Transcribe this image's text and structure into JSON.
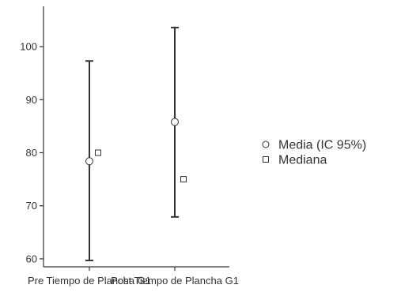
{
  "chart_data": {
    "type": "errorbar",
    "categories": [
      "Pre Tiempo de Plancha G1",
      "Post Tiempo de Plancha G1"
    ],
    "series": [
      {
        "name": "Media (IC 95%)",
        "marker": "circle",
        "values": [
          78.4,
          85.8
        ]
      },
      {
        "name": "Mediana",
        "marker": "square",
        "values": [
          80,
          75
        ]
      }
    ],
    "ci_lower": [
      59.7,
      67.9
    ],
    "ci_upper": [
      97.3,
      103.6
    ],
    "title": "",
    "xlabel": "",
    "ylabel": "",
    "ylim": [
      58.5,
      107.6
    ],
    "yticks": [
      "60",
      "70",
      "80",
      "90",
      "100"
    ],
    "grid": false,
    "legend_position": "right",
    "colors": {
      "axis": "#333333",
      "errorbar": "#333333",
      "marker_fill": "#ffffff",
      "text": "#333333"
    }
  }
}
